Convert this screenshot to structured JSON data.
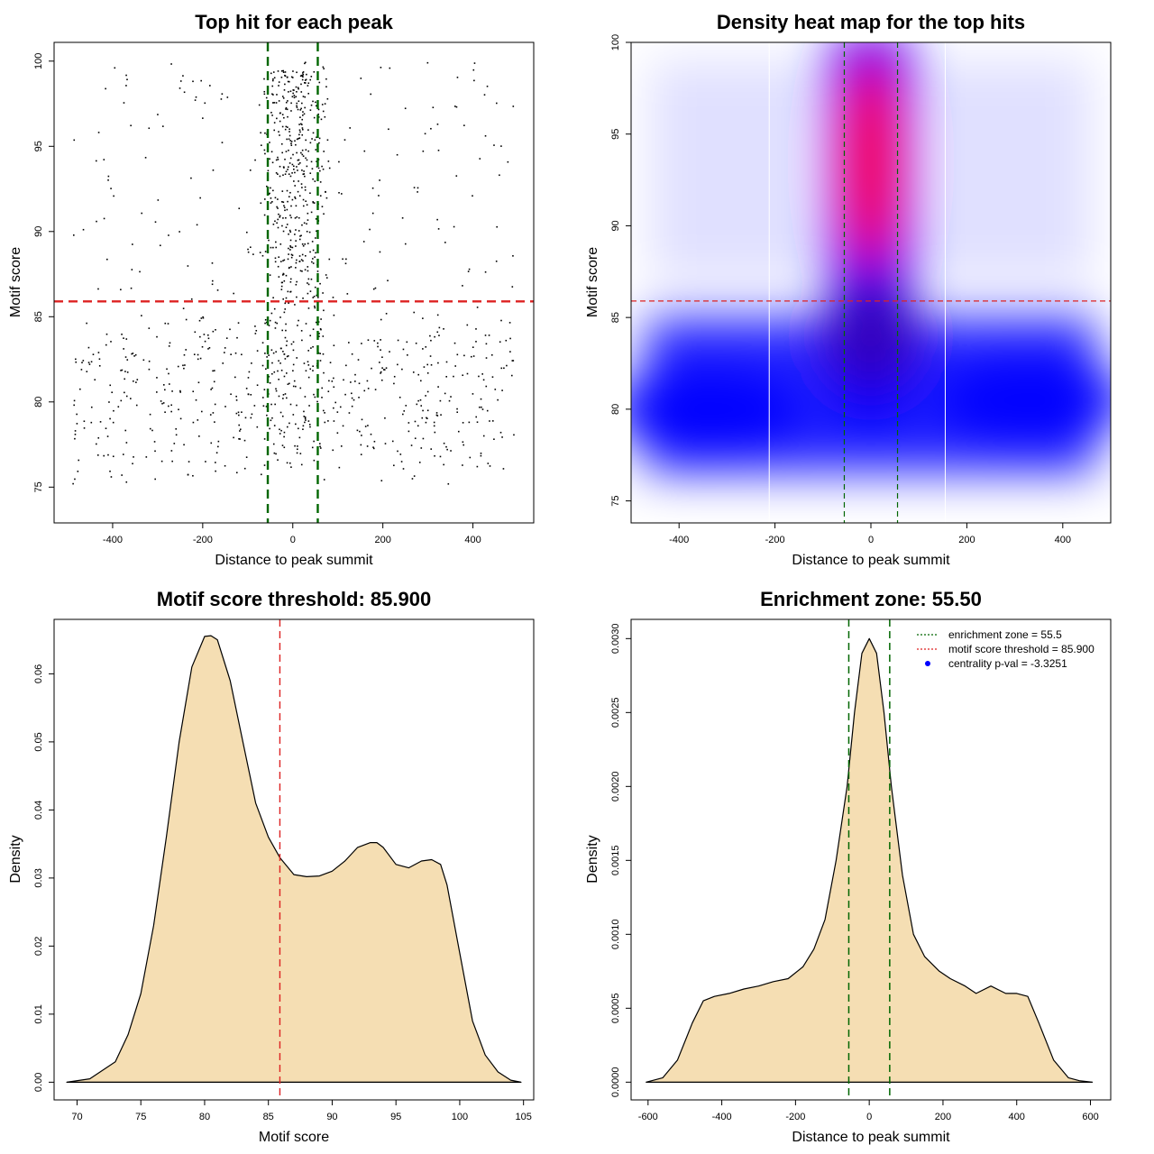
{
  "chart_data": [
    {
      "type": "scatter",
      "title": "Top hit for each peak",
      "xlabel": "Distance to peak summit",
      "ylabel": "Motif score",
      "xlim": [
        -530,
        535
      ],
      "ylim": [
        72.9,
        101.1
      ],
      "xticks": [
        "-400",
        "-200",
        "0",
        "200",
        "400"
      ],
      "xtick_values": [
        -400,
        -200,
        0,
        200,
        400
      ],
      "yticks": [
        "75",
        "80",
        "85",
        "90",
        "95",
        "100"
      ],
      "ytick_values": [
        75,
        80,
        85,
        90,
        95,
        100
      ],
      "hline": {
        "y": 85.9,
        "color": "#dd2222"
      },
      "vlines": [
        {
          "x": -55.5,
          "color": "#006600"
        },
        {
          "x": 55.5,
          "color": "#006600"
        }
      ],
      "points_summary": "approx. 1200 top-hit points; dense central column (|x|<60) at scores 86-100, broad band at scores 77-84 across all distances",
      "point_color": "#000000"
    },
    {
      "type": "heatmap",
      "title": "Density heat map for the top hits",
      "xlabel": "Distance to peak summit",
      "ylabel": "Motif score",
      "xlim": [
        -500,
        500
      ],
      "ylim": [
        73.8,
        100
      ],
      "xticks": [
        "-400",
        "-200",
        "0",
        "200",
        "400"
      ],
      "xtick_values": [
        -400,
        -200,
        0,
        200,
        400
      ],
      "yticks": [
        "75",
        "80",
        "85",
        "90",
        "95",
        "100"
      ],
      "ytick_values": [
        75,
        80,
        85,
        90,
        95,
        100
      ],
      "hline": {
        "y": 85.9,
        "color": "#dd2222"
      },
      "vlines": [
        {
          "x": -55.5,
          "color": "#006600"
        },
        {
          "x": 55.5,
          "color": "#006600"
        }
      ],
      "white_lines": [
        -212,
        155
      ],
      "color_scale": [
        "#ffffff",
        "#0000ff",
        "#ff0000"
      ]
    },
    {
      "type": "area",
      "title": "Motif score threshold: 85.900",
      "xlabel": "Motif score",
      "ylabel": "Density",
      "xlim": [
        68.2,
        105.8
      ],
      "ylim": [
        -0.0026,
        0.068
      ],
      "xticks": [
        "70",
        "75",
        "80",
        "85",
        "90",
        "95",
        "100",
        "105"
      ],
      "xtick_values": [
        70,
        75,
        80,
        85,
        90,
        95,
        100,
        105
      ],
      "yticks": [
        "0.00",
        "0.01",
        "0.02",
        "0.03",
        "0.04",
        "0.05",
        "0.06"
      ],
      "ytick_values": [
        0,
        0.01,
        0.02,
        0.03,
        0.04,
        0.05,
        0.06
      ],
      "x": [
        69.2,
        71,
        73,
        74,
        75,
        76,
        77,
        78,
        79,
        80,
        80.5,
        81,
        82,
        83,
        84,
        85,
        85.9,
        87,
        88,
        89,
        90,
        91,
        92,
        93,
        93.5,
        94,
        95,
        96,
        97,
        97.8,
        98.5,
        99,
        100,
        101,
        102,
        103,
        104,
        104.8
      ],
      "y": [
        0,
        0.0005,
        0.003,
        0.007,
        0.013,
        0.023,
        0.036,
        0.05,
        0.061,
        0.0655,
        0.0656,
        0.065,
        0.059,
        0.05,
        0.041,
        0.036,
        0.033,
        0.0305,
        0.0302,
        0.0303,
        0.031,
        0.0325,
        0.0345,
        0.0352,
        0.0352,
        0.0345,
        0.032,
        0.0315,
        0.0325,
        0.0327,
        0.032,
        0.029,
        0.019,
        0.009,
        0.004,
        0.0015,
        0.0003,
        0
      ],
      "fill": "#f5deb3",
      "vline": {
        "x": 85.9,
        "color": "#dd2222"
      }
    },
    {
      "type": "area",
      "title": "Enrichment zone: 55.50",
      "xlabel": "Distance to peak summit",
      "ylabel": "Density",
      "xlim": [
        -646,
        655
      ],
      "ylim": [
        -0.00012,
        0.00313
      ],
      "xticks": [
        "-600",
        "-400",
        "-200",
        "0",
        "200",
        "400",
        "600"
      ],
      "xtick_values": [
        -600,
        -400,
        -200,
        0,
        200,
        400,
        600
      ],
      "yticks": [
        "0.0000",
        "0.0005",
        "0.0010",
        "0.0015",
        "0.0020",
        "0.0025",
        "0.0030"
      ],
      "ytick_values": [
        0,
        0.0005,
        0.001,
        0.0015,
        0.002,
        0.0025,
        0.003
      ],
      "x": [
        -605,
        -560,
        -520,
        -480,
        -450,
        -420,
        -380,
        -340,
        -300,
        -260,
        -220,
        -180,
        -150,
        -120,
        -90,
        -60,
        -40,
        -20,
        0,
        20,
        40,
        60,
        90,
        120,
        150,
        190,
        220,
        260,
        290,
        330,
        370,
        400,
        430,
        460,
        500,
        540,
        570,
        605
      ],
      "y": [
        0,
        3e-05,
        0.00015,
        0.0004,
        0.00055,
        0.00058,
        0.0006,
        0.00063,
        0.00065,
        0.00068,
        0.0007,
        0.00078,
        0.0009,
        0.0011,
        0.0015,
        0.002,
        0.0025,
        0.0029,
        0.003,
        0.0029,
        0.0025,
        0.002,
        0.0014,
        0.001,
        0.00085,
        0.00075,
        0.0007,
        0.00065,
        0.0006,
        0.00065,
        0.0006,
        0.0006,
        0.00058,
        0.0004,
        0.00015,
        3e-05,
        1e-05,
        0
      ],
      "fill": "#f5deb3",
      "vlines": [
        {
          "x": -55.5,
          "color": "#006600"
        },
        {
          "x": 55.5,
          "color": "#006600"
        }
      ],
      "legend_position": "top-right",
      "legend": [
        {
          "label": "enrichment zone = 55.5",
          "color": "#006600",
          "style": "dotted"
        },
        {
          "label": "motif score threshold = 85.900",
          "color": "#dd2222",
          "style": "dotted"
        },
        {
          "label": "centrality p-val = -3.3251",
          "color": "#0000ff",
          "style": "point"
        }
      ]
    }
  ]
}
